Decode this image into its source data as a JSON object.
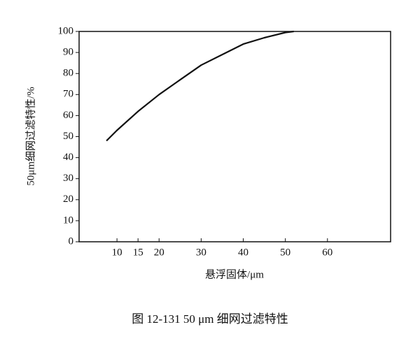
{
  "chart_data": {
    "type": "line",
    "caption": "图 12-131    50 μm 细网过滤特性",
    "x_label": "悬浮固体/μm",
    "y_label": "50μm细网过滤特性/%",
    "x": [
      7.5,
      10,
      15,
      20,
      25,
      30,
      35,
      40,
      45,
      50,
      52
    ],
    "values": [
      48,
      53,
      62,
      70,
      77,
      84,
      89,
      94,
      97,
      99.5,
      100
    ],
    "color": "#111111",
    "xlim": [
      1,
      75
    ],
    "ylim": [
      0,
      100
    ],
    "xticks": [
      10,
      15,
      20,
      30,
      40,
      50,
      60
    ],
    "yticks": [
      0,
      10,
      20,
      30,
      40,
      50,
      60,
      70,
      80,
      90,
      100
    ],
    "grid": false
  }
}
